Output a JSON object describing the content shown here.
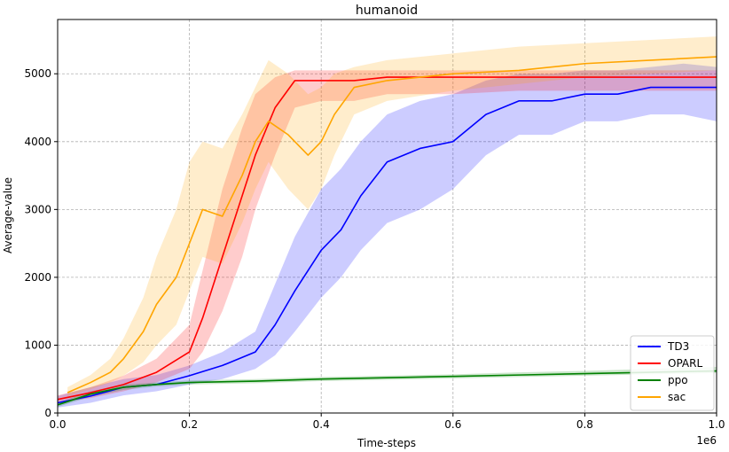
{
  "chart_data": {
    "type": "line",
    "title": "humanoid",
    "xlabel": "Time-steps",
    "ylabel": "Average-value",
    "x_offset_label": "1e6",
    "xlim": [
      0,
      1.0
    ],
    "ylim": [
      0,
      5800
    ],
    "x_ticks": [
      0.0,
      0.2,
      0.4,
      0.6,
      0.8,
      1.0
    ],
    "x_tick_labels": [
      "0.0",
      "0.2",
      "0.4",
      "0.6",
      "0.8",
      "1.0"
    ],
    "y_ticks": [
      0,
      1000,
      2000,
      3000,
      4000,
      5000
    ],
    "y_tick_labels": [
      "0",
      "1000",
      "2000",
      "3000",
      "4000",
      "5000"
    ],
    "grid": true,
    "legend_position": "lower-right",
    "series": [
      {
        "name": "TD3",
        "color": "#0000ff",
        "x": [
          0.0,
          0.05,
          0.1,
          0.15,
          0.2,
          0.25,
          0.3,
          0.33,
          0.36,
          0.4,
          0.43,
          0.46,
          0.5,
          0.55,
          0.6,
          0.65,
          0.7,
          0.75,
          0.8,
          0.85,
          0.9,
          0.95,
          1.0
        ],
        "values": [
          150,
          250,
          380,
          420,
          550,
          700,
          900,
          1300,
          1800,
          2400,
          2700,
          3200,
          3700,
          3900,
          4000,
          4400,
          4600,
          4600,
          4700,
          4700,
          4800,
          4800,
          4800
        ],
        "lower": [
          80,
          150,
          260,
          320,
          420,
          500,
          650,
          850,
          1200,
          1700,
          2000,
          2400,
          2800,
          3000,
          3300,
          3800,
          4100,
          4100,
          4300,
          4300,
          4400,
          4400,
          4300
        ],
        "upper": [
          250,
          380,
          500,
          560,
          700,
          900,
          1200,
          1900,
          2600,
          3300,
          3600,
          4000,
          4400,
          4600,
          4700,
          4900,
          5000,
          5000,
          5050,
          5050,
          5100,
          5150,
          5100
        ]
      },
      {
        "name": "OPARL",
        "color": "#ff0000",
        "x": [
          0.0,
          0.05,
          0.1,
          0.15,
          0.2,
          0.22,
          0.25,
          0.28,
          0.3,
          0.33,
          0.36,
          0.4,
          0.45,
          0.5,
          0.6,
          0.7,
          0.8,
          0.9,
          1.0
        ],
        "values": [
          200,
          300,
          420,
          600,
          900,
          1400,
          2300,
          3200,
          3800,
          4500,
          4900,
          4900,
          4900,
          4950,
          4950,
          4950,
          4950,
          4950,
          4950
        ],
        "lower": [
          150,
          220,
          320,
          450,
          650,
          900,
          1500,
          2300,
          3000,
          3800,
          4500,
          4600,
          4600,
          4700,
          4700,
          4750,
          4750,
          4750,
          4750
        ],
        "upper": [
          260,
          380,
          550,
          800,
          1300,
          2100,
          3300,
          4200,
          4700,
          4950,
          5050,
          5050,
          5050,
          5050,
          5050,
          5050,
          5050,
          5050,
          5050
        ]
      },
      {
        "name": "ppo",
        "color": "#008000",
        "x": [
          0.0,
          0.05,
          0.1,
          0.15,
          0.2,
          0.3,
          0.4,
          0.5,
          0.6,
          0.7,
          0.8,
          0.9,
          1.0
        ],
        "values": [
          120,
          280,
          380,
          420,
          450,
          470,
          500,
          520,
          540,
          560,
          580,
          600,
          620
        ],
        "lower": [
          90,
          240,
          340,
          390,
          420,
          440,
          470,
          490,
          510,
          530,
          550,
          570,
          590
        ],
        "upper": [
          150,
          320,
          420,
          450,
          480,
          500,
          530,
          550,
          570,
          600,
          620,
          650,
          680
        ]
      },
      {
        "name": "sac",
        "color": "#ffa500",
        "x": [
          0.015,
          0.05,
          0.08,
          0.1,
          0.13,
          0.15,
          0.18,
          0.2,
          0.22,
          0.25,
          0.28,
          0.3,
          0.32,
          0.35,
          0.38,
          0.4,
          0.42,
          0.45,
          0.5,
          0.6,
          0.7,
          0.8,
          0.9,
          1.0
        ],
        "values": [
          300,
          450,
          600,
          800,
          1200,
          1600,
          2000,
          2500,
          3000,
          2900,
          3500,
          4000,
          4300,
          4100,
          3800,
          4000,
          4400,
          4800,
          4900,
          5000,
          5050,
          5150,
          5200,
          5250
        ],
        "lower": [
          250,
          350,
          450,
          550,
          750,
          1000,
          1300,
          1800,
          2300,
          2200,
          2800,
          3300,
          3700,
          3300,
          3000,
          3300,
          3800,
          4400,
          4600,
          4750,
          4850,
          4950,
          5000,
          5050
        ],
        "upper": [
          380,
          560,
          800,
          1100,
          1700,
          2300,
          3000,
          3700,
          4000,
          3900,
          4400,
          4800,
          5200,
          5000,
          4700,
          4800,
          5000,
          5100,
          5200,
          5300,
          5400,
          5450,
          5500,
          5550
        ]
      }
    ]
  }
}
